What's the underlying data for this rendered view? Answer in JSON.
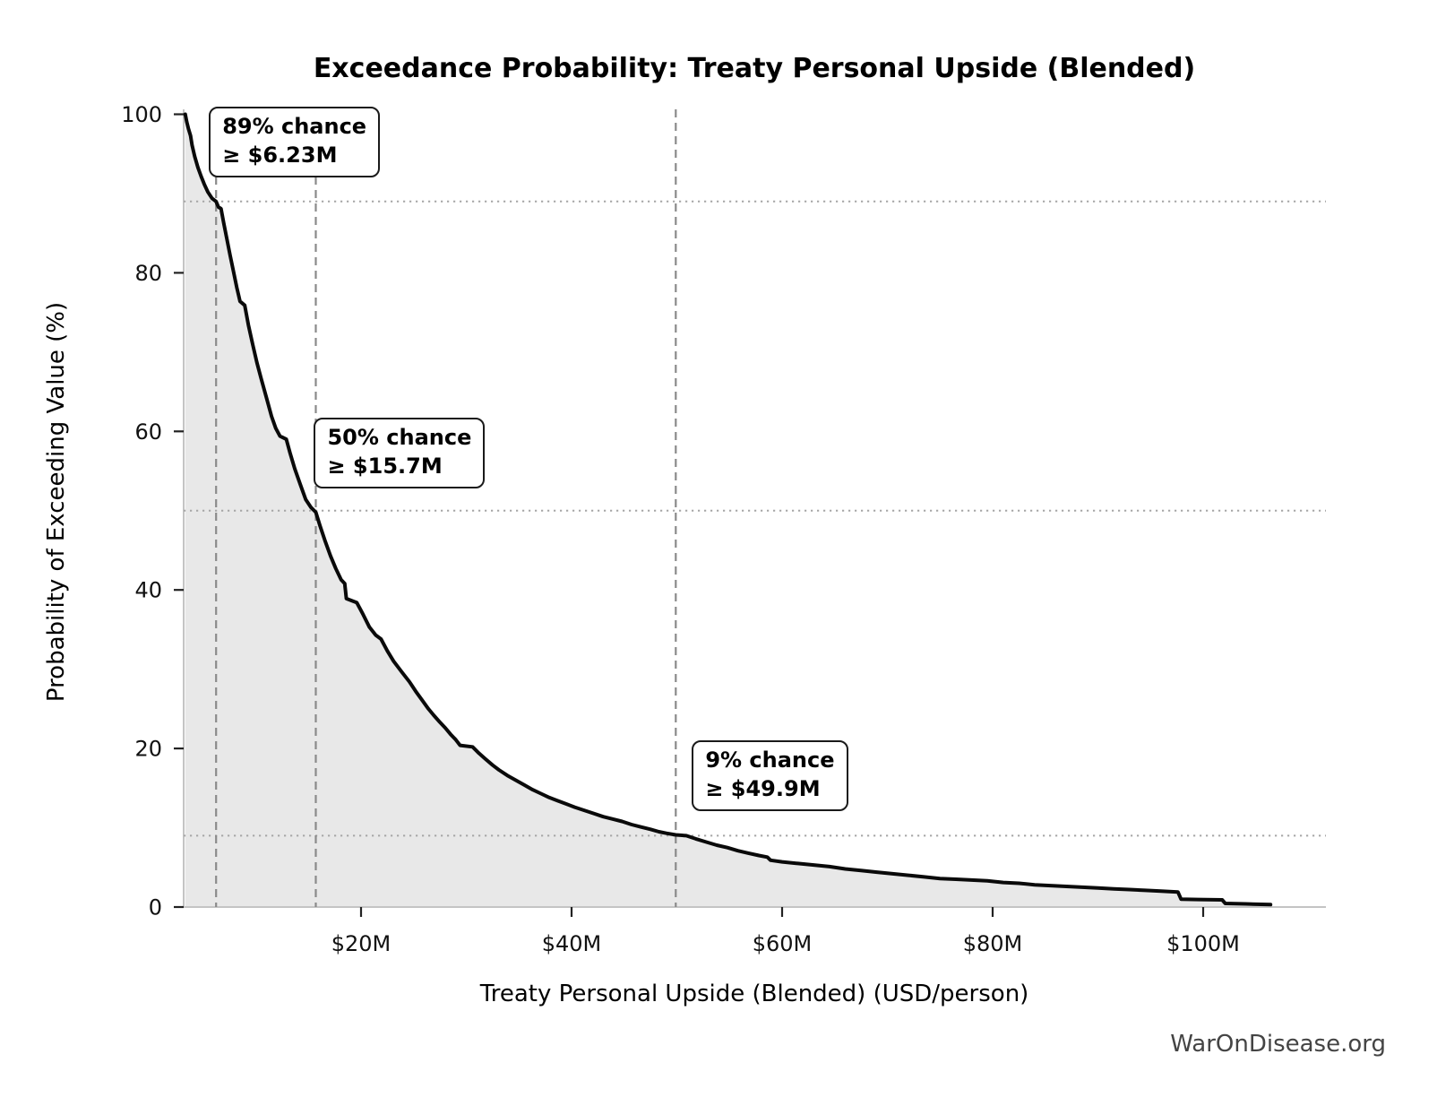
{
  "watermark": "WarOnDisease.org",
  "chart_data": {
    "type": "area",
    "title": "Exceedance Probability: Treaty Personal Upside (Blended)",
    "xlabel": "Treaty Personal Upside (Blended) (USD/person)",
    "ylabel": "Probability of Exceeding Value (%)",
    "x_unit_note": "x values in USD millions per person",
    "xlim": [
      3.2,
      111.5
    ],
    "ylim": [
      0,
      100
    ],
    "grid": "off",
    "legend": "none",
    "x_ticks": [
      {
        "value": 20,
        "label": "$20M"
      },
      {
        "value": 40,
        "label": "$40M"
      },
      {
        "value": 60,
        "label": "$60M"
      },
      {
        "value": 80,
        "label": "$80M"
      },
      {
        "value": 100,
        "label": "$100M"
      }
    ],
    "y_ticks": [
      {
        "value": 0,
        "label": "0"
      },
      {
        "value": 20,
        "label": "20"
      },
      {
        "value": 40,
        "label": "40"
      },
      {
        "value": 60,
        "label": "60"
      },
      {
        "value": 80,
        "label": "80"
      },
      {
        "value": 100,
        "label": "100"
      }
    ],
    "series": [
      {
        "name": "Exceedance probability curve",
        "points": [
          [
            3.3,
            100
          ],
          [
            3.45,
            99.0
          ],
          [
            3.6,
            98.2
          ],
          [
            3.8,
            97.3
          ],
          [
            3.95,
            96.1
          ],
          [
            4.2,
            94.7
          ],
          [
            4.5,
            93.3
          ],
          [
            4.8,
            92.2
          ],
          [
            5.1,
            91.2
          ],
          [
            5.45,
            90.2
          ],
          [
            5.85,
            89.4
          ],
          [
            6.23,
            89.0
          ],
          [
            6.45,
            88.3
          ],
          [
            6.7,
            88.1
          ],
          [
            6.95,
            86.3
          ],
          [
            7.25,
            84.3
          ],
          [
            7.55,
            82.3
          ],
          [
            7.85,
            80.4
          ],
          [
            8.2,
            78.1
          ],
          [
            8.5,
            76.4
          ],
          [
            8.95,
            75.9
          ],
          [
            9.3,
            73.4
          ],
          [
            9.7,
            71.0
          ],
          [
            10.1,
            68.7
          ],
          [
            10.5,
            66.7
          ],
          [
            11.0,
            64.3
          ],
          [
            11.5,
            61.9
          ],
          [
            11.9,
            60.4
          ],
          [
            12.3,
            59.4
          ],
          [
            12.9,
            59.0
          ],
          [
            13.25,
            57.3
          ],
          [
            13.7,
            55.3
          ],
          [
            14.2,
            53.4
          ],
          [
            14.75,
            51.4
          ],
          [
            15.25,
            50.4
          ],
          [
            15.7,
            49.8
          ],
          [
            16.1,
            48.1
          ],
          [
            16.6,
            46.1
          ],
          [
            17.1,
            44.3
          ],
          [
            17.6,
            42.7
          ],
          [
            18.1,
            41.3
          ],
          [
            18.45,
            40.8
          ],
          [
            18.6,
            38.9
          ],
          [
            19.6,
            38.4
          ],
          [
            20.2,
            36.9
          ],
          [
            20.8,
            35.3
          ],
          [
            21.4,
            34.3
          ],
          [
            21.9,
            33.8
          ],
          [
            22.5,
            32.3
          ],
          [
            23.1,
            31.0
          ],
          [
            23.9,
            29.6
          ],
          [
            24.6,
            28.4
          ],
          [
            25.2,
            27.2
          ],
          [
            25.8,
            26.1
          ],
          [
            26.4,
            25.0
          ],
          [
            26.9,
            24.2
          ],
          [
            27.5,
            23.3
          ],
          [
            28.0,
            22.6
          ],
          [
            28.5,
            21.8
          ],
          [
            29.0,
            21.1
          ],
          [
            29.4,
            20.4
          ],
          [
            30.6,
            20.2
          ],
          [
            31.2,
            19.4
          ],
          [
            31.8,
            18.7
          ],
          [
            32.5,
            17.9
          ],
          [
            33.1,
            17.3
          ],
          [
            33.9,
            16.6
          ],
          [
            34.7,
            16.0
          ],
          [
            35.5,
            15.4
          ],
          [
            36.3,
            14.8
          ],
          [
            37.1,
            14.3
          ],
          [
            37.9,
            13.8
          ],
          [
            38.7,
            13.4
          ],
          [
            39.5,
            13.0
          ],
          [
            40.3,
            12.6
          ],
          [
            41.2,
            12.2
          ],
          [
            42.1,
            11.8
          ],
          [
            43.0,
            11.4
          ],
          [
            43.9,
            11.1
          ],
          [
            44.8,
            10.8
          ],
          [
            45.7,
            10.4
          ],
          [
            46.6,
            10.1
          ],
          [
            47.5,
            9.8
          ],
          [
            48.3,
            9.5
          ],
          [
            49.0,
            9.3
          ],
          [
            49.9,
            9.1
          ],
          [
            50.9,
            9.0
          ],
          [
            51.8,
            8.6
          ],
          [
            52.8,
            8.2
          ],
          [
            53.8,
            7.8
          ],
          [
            54.8,
            7.5
          ],
          [
            55.8,
            7.1
          ],
          [
            56.8,
            6.8
          ],
          [
            57.8,
            6.5
          ],
          [
            58.6,
            6.3
          ],
          [
            58.9,
            5.9
          ],
          [
            60.0,
            5.7
          ],
          [
            61.5,
            5.5
          ],
          [
            63.0,
            5.3
          ],
          [
            64.5,
            5.1
          ],
          [
            66.0,
            4.8
          ],
          [
            67.5,
            4.6
          ],
          [
            69.0,
            4.4
          ],
          [
            70.5,
            4.2
          ],
          [
            72.0,
            4.0
          ],
          [
            73.5,
            3.8
          ],
          [
            75.0,
            3.6
          ],
          [
            76.5,
            3.5
          ],
          [
            78.0,
            3.4
          ],
          [
            79.5,
            3.3
          ],
          [
            81.0,
            3.1
          ],
          [
            82.5,
            3.0
          ],
          [
            84.0,
            2.8
          ],
          [
            85.5,
            2.7
          ],
          [
            87.0,
            2.6
          ],
          [
            88.5,
            2.5
          ],
          [
            90.0,
            2.4
          ],
          [
            91.5,
            2.3
          ],
          [
            93.0,
            2.2
          ],
          [
            94.5,
            2.1
          ],
          [
            96.0,
            2.0
          ],
          [
            97.6,
            1.9
          ],
          [
            97.9,
            1.0
          ],
          [
            99.5,
            0.95
          ],
          [
            101.8,
            0.9
          ],
          [
            102.1,
            0.45
          ],
          [
            104.0,
            0.4
          ],
          [
            106.4,
            0.3
          ]
        ]
      }
    ],
    "annotations": [
      {
        "line1": "89% chance",
        "line2": "≥ $6.23M",
        "x_value": 6.23,
        "probability_percent": 89
      },
      {
        "line1": "50% chance",
        "line2": "≥ $15.7M",
        "x_value": 15.7,
        "probability_percent": 50
      },
      {
        "line1": "9% chance",
        "line2": "≥ $49.9M",
        "x_value": 49.9,
        "probability_percent": 9
      }
    ],
    "reference_lines": {
      "vertical_x_values": [
        6.23,
        15.7,
        49.9
      ],
      "horizontal_percents": [
        89,
        50,
        9
      ]
    },
    "colors": {
      "curve": "#0a0a0a",
      "fill": "#e8e8e8",
      "dashed_line": "#8a8a8a",
      "dotted_line": "#a6a6a6",
      "spine": "#c4c4c4",
      "tick": "#222222",
      "watermark": "#444444"
    }
  }
}
